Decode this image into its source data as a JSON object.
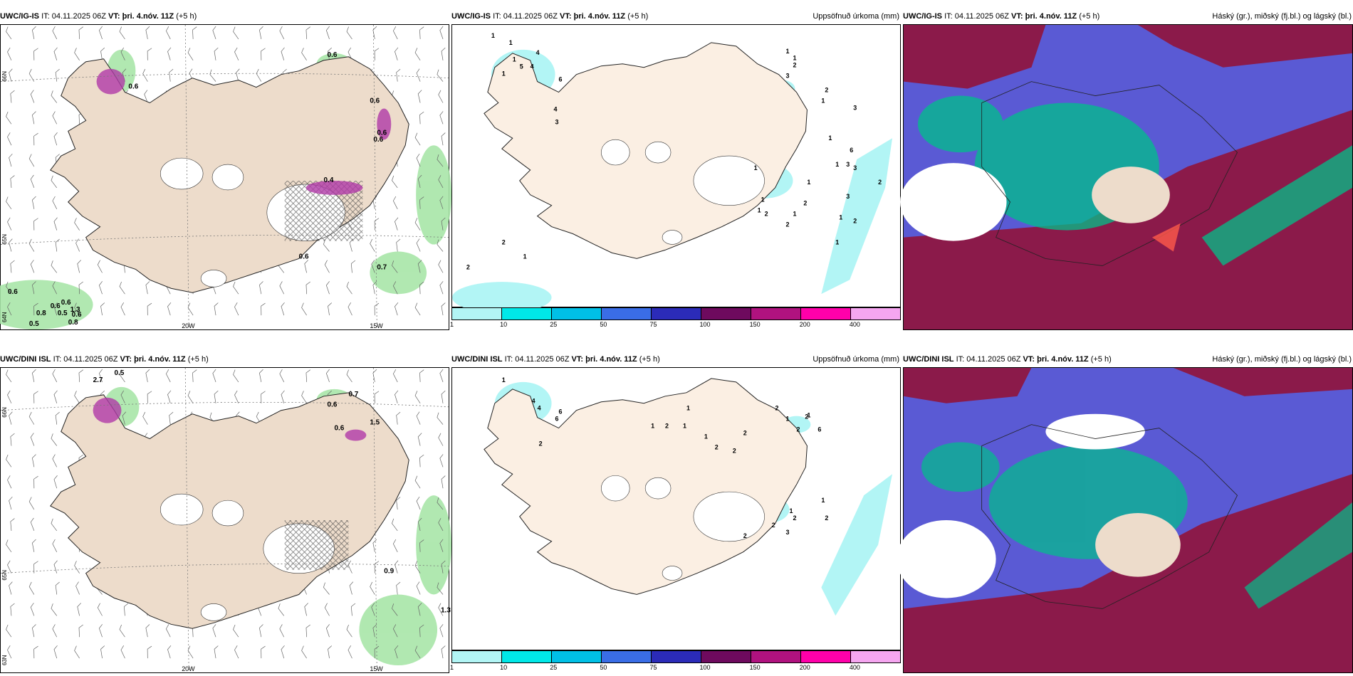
{
  "rows": [
    {
      "panels": [
        {
          "model": "UWC/IG-IS",
          "it": "IT: 04.11.2025 06Z",
          "vt_label": "VT:",
          "vt": "þri. 4.nóv. 11Z",
          "lead": "(+5 h)",
          "right": ""
        },
        {
          "model": "UWC/IG-IS",
          "it": "IT: 04.11.2025 06Z",
          "vt_label": "VT:",
          "vt": "þri. 4.nóv. 11Z",
          "lead": "(+5 h)",
          "right": "Uppsöfnuð úrkoma (mm)"
        },
        {
          "model": "UWC/IG-IS",
          "it": "IT: 04.11.2025 06Z",
          "vt_label": "VT:",
          "vt": "þri. 4.nóv. 11Z",
          "lead": "(+5 h)",
          "right": "Háský (gr.), miðský (fj.bl.) og lágský (bl.)"
        }
      ],
      "precip_labels": [
        "1",
        "1",
        "1",
        "5",
        "4",
        "1",
        "4",
        "6",
        "4",
        "3",
        "2",
        "1",
        "2",
        "1",
        "1",
        "2",
        "3",
        "2",
        "1",
        "3",
        "1",
        "6",
        "1",
        "3",
        "3",
        "1",
        "1",
        "1",
        "2",
        "2",
        "1",
        "2",
        "1",
        "3",
        "1",
        "2",
        "2",
        "1"
      ],
      "wind_labels": [
        "0.6",
        "0.6",
        "0.6",
        "0.6",
        "0.4",
        "0.6",
        "0.7",
        "0.6",
        "0.6",
        "0.5",
        "0.8",
        "0.6",
        "1.3",
        "0.5",
        "0.6",
        "0.8",
        "0.6"
      ]
    },
    {
      "panels": [
        {
          "model": "UWC/DINI ISL",
          "it": "IT: 04.11.2025 06Z",
          "vt_label": "VT:",
          "vt": "þri. 4.nóv. 11Z",
          "lead": "(+5 h)",
          "right": ""
        },
        {
          "model": "UWC/DINI ISL",
          "it": "IT: 04.11.2025 06Z",
          "vt_label": "VT:",
          "vt": "þri. 4.nóv. 11Z",
          "lead": "(+5 h)",
          "right": "Uppsöfnuð úrkoma (mm)"
        },
        {
          "model": "UWC/DINI ISL",
          "it": "IT: 04.11.2025 06Z",
          "vt_label": "VT:",
          "vt": "þri. 4.nóv. 11Z",
          "lead": "(+5 h)",
          "right": "Háský (gr.), miðský (fj.bl.) og lágský (bl.)"
        }
      ],
      "precip_labels": [
        "1",
        "4",
        "4",
        "6",
        "6",
        "2",
        "1",
        "2",
        "1",
        "1",
        "1",
        "2",
        "2",
        "1",
        "2",
        "2",
        "6",
        "2",
        "2",
        "1",
        "1",
        "2",
        "2",
        "3",
        "1",
        "2",
        "2"
      ],
      "wind_labels": [
        "0.5",
        "2.7",
        "0.7",
        "0.6",
        "0.6",
        "1.5",
        "0.9",
        "1.3"
      ]
    }
  ],
  "colorbar": {
    "colors": [
      "#b2f5f5",
      "#00e8e8",
      "#00c0e6",
      "#3a6de6",
      "#2b2bb8",
      "#6e0a5e",
      "#b0127f",
      "#ff00aa",
      "#f5a6f0"
    ],
    "labels": [
      "1",
      "10",
      "25",
      "50",
      "75",
      "100",
      "150",
      "200",
      "400"
    ]
  },
  "axis": {
    "lon_left": "20W",
    "lon_right": "15W",
    "lat_top": "66N",
    "lat_mid": "65N",
    "lat_low": "64N",
    "lat_bot": "63N"
  },
  "colors": {
    "land": "#eddccb",
    "land_light": "#fbefe3",
    "cloud_high": "#00c08a",
    "cloud_mid": "#5a5ad4",
    "cloud_low": "#8b1a4a",
    "precip": "#b2f5f5",
    "precip_green": "#a8e6a8"
  }
}
